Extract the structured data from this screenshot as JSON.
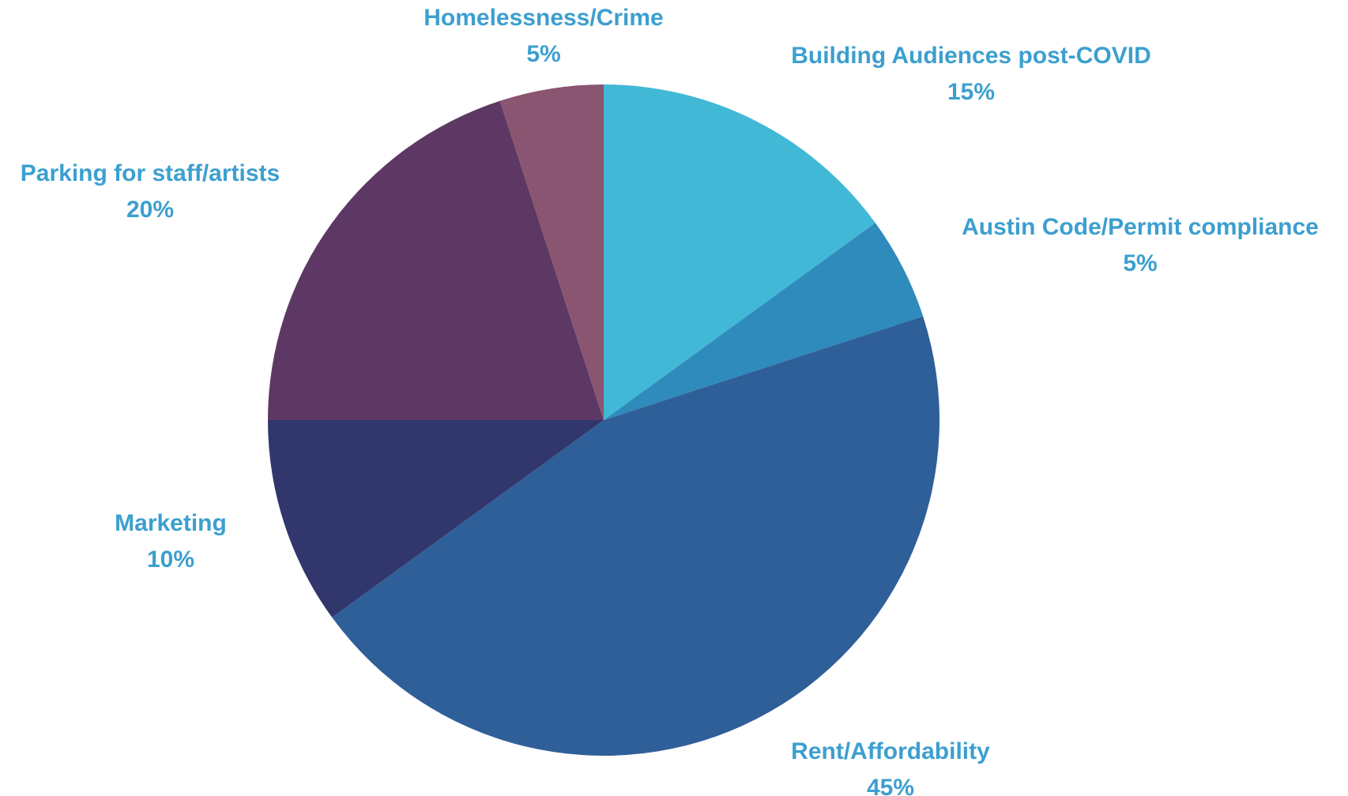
{
  "chart_data": {
    "type": "pie",
    "title": "",
    "start_angle": "12 o'clock",
    "direction": "clockwise",
    "slices": [
      {
        "label": "Building Audiences post-COVID",
        "value": 15,
        "value_label": "15%",
        "color": "#42B8D7"
      },
      {
        "label": "Austin Code/Permit compliance",
        "value": 5,
        "value_label": "5%",
        "color": "#2E8BBB"
      },
      {
        "label": "Rent/Affordability",
        "value": 45,
        "value_label": "45%",
        "color": "#2F5F98"
      },
      {
        "label": "Marketing",
        "value": 10,
        "value_label": "10%",
        "color": "#31366C"
      },
      {
        "label": "Parking for staff/artists",
        "value": 20,
        "value_label": "20%",
        "color": "#5E3864"
      },
      {
        "label": "Homelessness/Crime",
        "value": 5,
        "value_label": "5%",
        "color": "#895570"
      }
    ],
    "label_color": "#3C9FCF"
  }
}
